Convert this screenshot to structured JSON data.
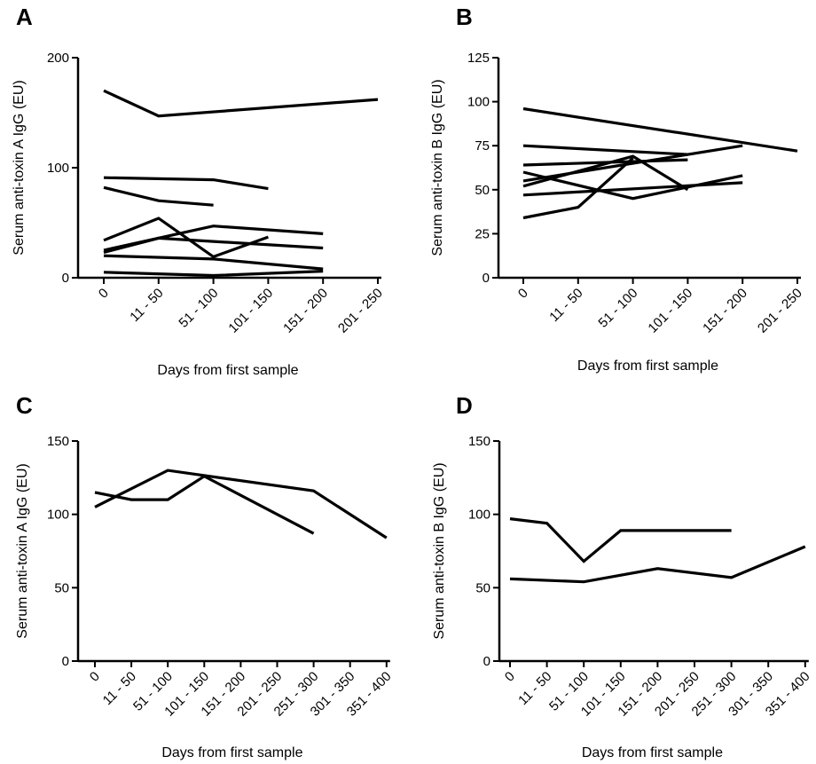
{
  "chart_data": [
    {
      "type": "line",
      "panel": "A",
      "title": "",
      "ylabel": "Serum anti-toxin A IgG (EU)",
      "xlabel": "Days from first sample",
      "categories": [
        "0",
        "11 - 50",
        "51 - 100",
        "101 - 150",
        "151 - 200",
        "201 - 250"
      ],
      "yticks": [
        "0",
        "100",
        "200"
      ],
      "ylim": [
        0,
        200
      ],
      "series": [
        {
          "values": [
            170,
            147,
            null,
            null,
            null,
            162
          ]
        },
        {
          "values": [
            91,
            null,
            89,
            81,
            null,
            null
          ]
        },
        {
          "values": [
            82,
            70,
            66,
            null,
            null,
            null
          ]
        },
        {
          "values": [
            34,
            54,
            19,
            37,
            null,
            null
          ]
        },
        {
          "values": [
            25,
            null,
            47,
            null,
            40,
            null
          ]
        },
        {
          "values": [
            23,
            36,
            null,
            null,
            27,
            null
          ]
        },
        {
          "values": [
            20,
            null,
            17,
            null,
            8,
            null
          ]
        },
        {
          "values": [
            5,
            null,
            2,
            null,
            6,
            null
          ]
        }
      ]
    },
    {
      "type": "line",
      "panel": "B",
      "title": "",
      "ylabel": "Serum anti-toxin B IgG (EU)",
      "xlabel": "Days from first sample",
      "categories": [
        "0",
        "11 - 50",
        "51 - 100",
        "101 - 150",
        "151 - 200",
        "201 - 250"
      ],
      "yticks": [
        "0",
        "25",
        "50",
        "75",
        "100",
        "125"
      ],
      "ylim": [
        0,
        125
      ],
      "series": [
        {
          "values": [
            96,
            null,
            null,
            null,
            null,
            72
          ]
        },
        {
          "values": [
            75,
            null,
            null,
            70,
            null,
            null
          ]
        },
        {
          "values": [
            64,
            null,
            null,
            67,
            null,
            null
          ]
        },
        {
          "values": [
            60,
            null,
            45,
            null,
            58,
            null
          ]
        },
        {
          "values": [
            55,
            null,
            null,
            null,
            75,
            null
          ]
        },
        {
          "values": [
            52,
            null,
            69,
            50,
            null,
            null
          ]
        },
        {
          "values": [
            47,
            null,
            null,
            null,
            54,
            null
          ]
        },
        {
          "values": [
            34,
            40,
            68,
            null,
            null,
            null
          ]
        }
      ]
    },
    {
      "type": "line",
      "panel": "C",
      "title": "",
      "ylabel": "Serum anti-toxin A IgG (EU)",
      "xlabel": "Days from first sample",
      "categories": [
        "0",
        "11 - 50",
        "51 - 100",
        "101 - 150",
        "151 - 200",
        "201 - 250",
        "251 - 300",
        "301 - 350",
        "351 - 400"
      ],
      "yticks": [
        "0",
        "50",
        "100",
        "150"
      ],
      "ylim": [
        0,
        150
      ],
      "series": [
        {
          "values": [
            115,
            110,
            110,
            126,
            null,
            null,
            87,
            null,
            null
          ]
        },
        {
          "values": [
            105,
            null,
            130,
            null,
            null,
            null,
            116,
            null,
            84
          ]
        }
      ]
    },
    {
      "type": "line",
      "panel": "D",
      "title": "",
      "ylabel": "Serum anti-toxin B IgG (EU)",
      "xlabel": "Days from first sample",
      "categories": [
        "0",
        "11 - 50",
        "51 - 100",
        "101 - 150",
        "151 - 200",
        "201 - 250",
        "251 - 300",
        "301 - 350",
        "351 - 400"
      ],
      "yticks": [
        "0",
        "50",
        "100",
        "150"
      ],
      "ylim": [
        0,
        150
      ],
      "series": [
        {
          "values": [
            97,
            94,
            68,
            89,
            null,
            null,
            89,
            null,
            null
          ]
        },
        {
          "values": [
            56,
            null,
            54,
            null,
            63,
            null,
            57,
            null,
            78
          ]
        }
      ]
    }
  ]
}
